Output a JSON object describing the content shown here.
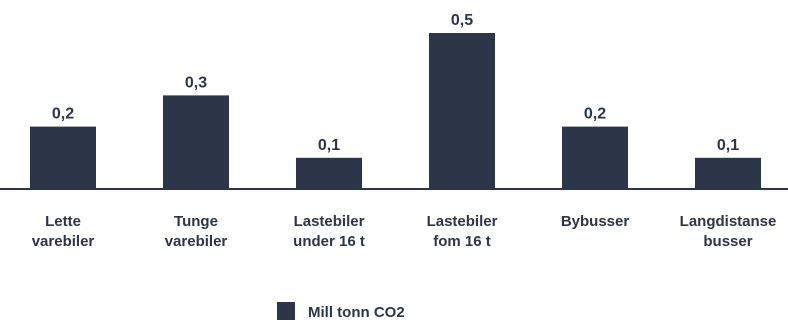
{
  "chart_data": {
    "type": "bar",
    "categories": [
      [
        "Lette",
        "varebiler"
      ],
      [
        "Tunge",
        "varebiler"
      ],
      [
        "Lastebiler",
        "under 16 t"
      ],
      [
        "Lastebiler",
        "fom 16 t"
      ],
      [
        "Bybusser"
      ],
      [
        "Langdistanse",
        "busser"
      ]
    ],
    "series": [
      {
        "name": "Mill tonn CO2",
        "values": [
          0.2,
          0.3,
          0.1,
          0.5,
          0.2,
          0.1
        ],
        "value_labels": [
          "0,2",
          "0,3",
          "0,1",
          "0,5",
          "0,2",
          "0,1"
        ]
      }
    ],
    "ylim": [
      0,
      0.5
    ],
    "grid": false,
    "legend_position": "bottom-center",
    "colors": {
      "bar": "#2c3648",
      "axis": "#2c3648",
      "text": "#2c3648"
    }
  }
}
